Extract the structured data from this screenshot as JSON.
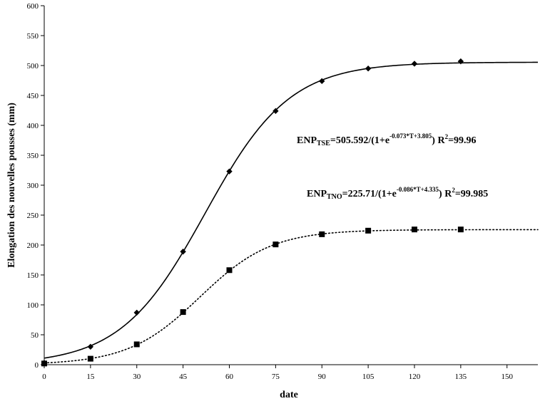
{
  "chart_data": {
    "type": "scatter",
    "xlabel": "date",
    "ylabel": "Elongation des nouvelles pousses (mm)",
    "xlim": [
      0,
      160
    ],
    "ylim": [
      0,
      600
    ],
    "xticks": [
      0,
      15,
      30,
      45,
      60,
      75,
      90,
      105,
      120,
      135,
      150
    ],
    "yticks": [
      0,
      50,
      100,
      150,
      200,
      250,
      300,
      350,
      400,
      450,
      500,
      550,
      600
    ],
    "grid": false,
    "series": [
      {
        "marker": "diamond",
        "line_style": "solid",
        "x": [
          0,
          15,
          30,
          45,
          60,
          75,
          90,
          105,
          120,
          135
        ],
        "y": [
          3,
          30,
          87,
          189,
          323,
          424,
          474,
          495,
          503,
          507
        ],
        "fit": {
          "K": 505.592,
          "a": -0.073,
          "b": 3.805
        }
      },
      {
        "marker": "square",
        "line_style": "dotted",
        "x": [
          0,
          15,
          30,
          45,
          60,
          75,
          90,
          105,
          120,
          135
        ],
        "y": [
          2,
          10,
          34,
          88,
          158,
          201,
          218,
          224,
          226,
          226
        ],
        "fit": {
          "K": 225.71,
          "a": -0.086,
          "b": 4.335
        }
      }
    ],
    "annotations": [
      {
        "prefix": "ENP",
        "sub": "TSE",
        "mid": "=505.592/(1+e",
        "sup": "-0.073*T+3.805",
        "after": ") R",
        "r2sup": "2",
        "r2": "=99.96"
      },
      {
        "prefix": "ENP",
        "sub": "TNO",
        "mid": "=225.71/(1+e",
        "sup": "-0.086*T+4.335",
        "after": ") R",
        "r2sup": "2",
        "r2": "=99.985"
      }
    ]
  }
}
